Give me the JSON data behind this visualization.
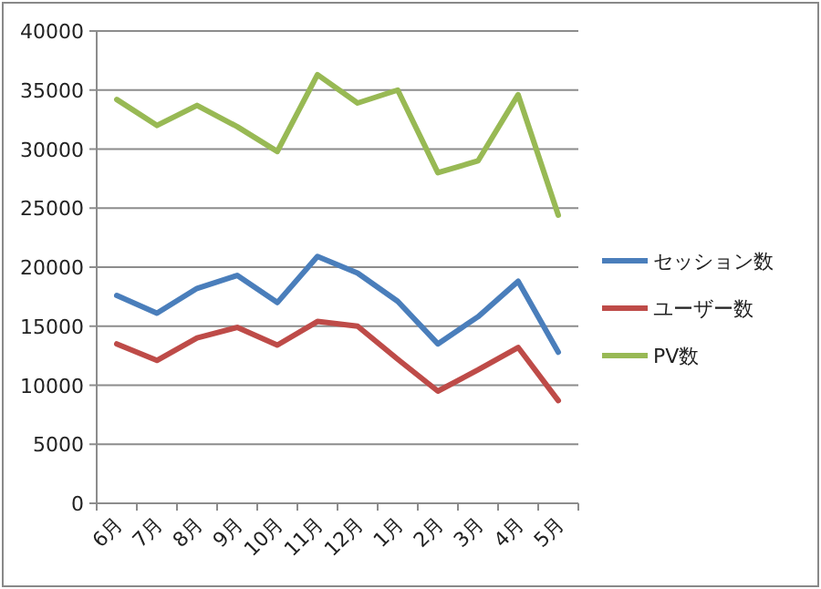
{
  "chart_data": {
    "type": "line",
    "categories": [
      "6月",
      "7月",
      "8月",
      "9月",
      "10月",
      "11月",
      "12月",
      "1月",
      "2月",
      "3月",
      "4月",
      "5月"
    ],
    "series": [
      {
        "name": "セッション数",
        "color": "#4a7ebb",
        "values": [
          17600,
          16100,
          18200,
          19300,
          17000,
          20900,
          19500,
          17100,
          13500,
          15800,
          18800,
          12800
        ]
      },
      {
        "name": "ユーザー数",
        "color": "#be4b48",
        "values": [
          13500,
          12100,
          14000,
          14900,
          13400,
          15400,
          15000,
          12200,
          9500,
          11300,
          13200,
          8700
        ]
      },
      {
        "name": "PV数",
        "color": "#98b954",
        "values": [
          34200,
          32000,
          33700,
          31900,
          29800,
          36300,
          33900,
          35000,
          28000,
          29000,
          34600,
          24400
        ]
      }
    ],
    "ylim": [
      0,
      40000
    ],
    "yticks": [
      0,
      5000,
      10000,
      15000,
      20000,
      25000,
      30000,
      35000,
      40000
    ],
    "grid": "y",
    "legend": "right",
    "marker": "none",
    "line_style": "solid"
  }
}
